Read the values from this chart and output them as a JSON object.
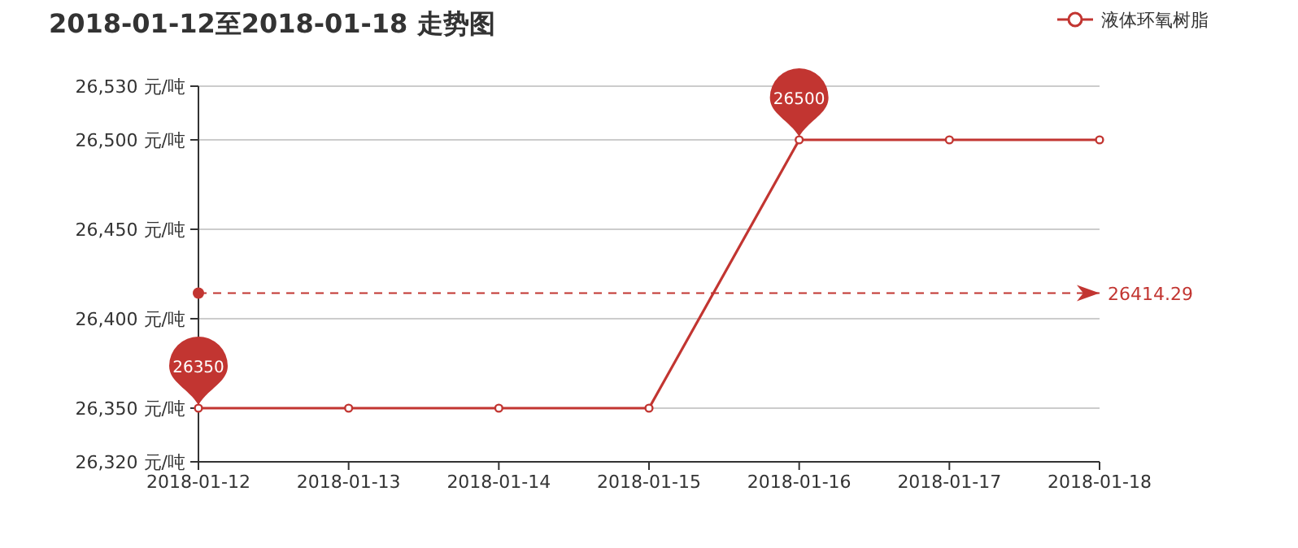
{
  "chart_data": {
    "type": "line",
    "title": "2018-01-12至2018-01-18 走势图",
    "categories": [
      "2018-01-12",
      "2018-01-13",
      "2018-01-14",
      "2018-01-15",
      "2018-01-16",
      "2018-01-17",
      "2018-01-18"
    ],
    "series": [
      {
        "name": "液体环氧树脂",
        "color": "#c23531",
        "values": [
          26350,
          26350,
          26350,
          26350,
          26500,
          26500,
          26500
        ]
      }
    ],
    "ylim": [
      26320,
      26530
    ],
    "yticks": [
      {
        "value": 26320,
        "label": "26,320 元/吨"
      },
      {
        "value": 26350,
        "label": "26,350 元/吨"
      },
      {
        "value": 26400,
        "label": "26,400 元/吨"
      },
      {
        "value": 26450,
        "label": "26,450 元/吨"
      },
      {
        "value": 26500,
        "label": "26,500 元/吨"
      },
      {
        "value": 26530,
        "label": "26,530 元/吨"
      }
    ],
    "ref_lines": [
      {
        "axis": "y",
        "value": 26414.29,
        "label": "26414.29",
        "color": "#c23531",
        "line_style": "dashed"
      }
    ],
    "annotations": [
      {
        "text": "26350",
        "x": "2018-01-12",
        "y": 26350
      },
      {
        "text": "26500",
        "x": "2018-01-16",
        "y": 26500
      }
    ],
    "grid": "y",
    "legend": "top right",
    "marker": "circle",
    "line_style": "solid"
  }
}
